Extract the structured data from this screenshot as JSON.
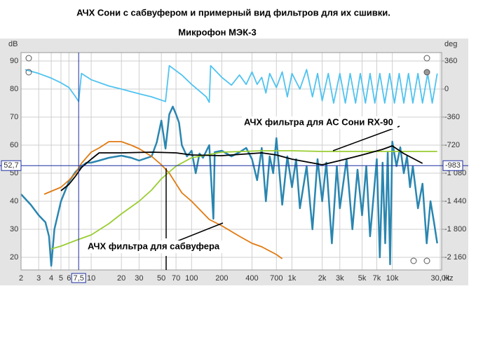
{
  "chart_data": {
    "type": "line",
    "title": "АЧХ Сони с сабвуфером и примерный вид фильтров для их сшивки.",
    "subtitle": "Микрофон МЭК-3",
    "xlabel": "Hz",
    "ylabel": "dB",
    "y2label": "deg",
    "log_x": true,
    "grid": true,
    "xlim": [
      2,
      31000
    ],
    "ylim": [
      15.5,
      93
    ],
    "y2lim": [
      -2322,
      468
    ],
    "xticks": [
      2,
      3,
      4,
      5,
      6,
      10,
      20,
      30,
      50,
      70,
      100,
      200,
      400,
      700,
      {
        "value": 1000,
        "label": "1k"
      },
      {
        "value": 2000,
        "label": "2k"
      },
      {
        "value": 3000,
        "label": "3k"
      },
      {
        "value": 5000,
        "label": "5k"
      },
      {
        "value": 7000,
        "label": "7k"
      },
      {
        "value": 10000,
        "label": "10k"
      },
      {
        "value": 30000,
        "label": "30,0k"
      }
    ],
    "yticks": [
      20,
      30,
      40,
      50,
      60,
      70,
      80,
      90
    ],
    "y2ticks": [
      360,
      0,
      -360,
      -720,
      {
        "value": -1080,
        "label": "-1 080"
      },
      {
        "value": -1440,
        "label": "-1 440"
      },
      {
        "value": -1800,
        "label": "-1 800"
      },
      {
        "value": -2160,
        "label": "-2 160"
      }
    ],
    "cursor": {
      "x": {
        "value": 7.5,
        "label": "7,5"
      },
      "y": {
        "value": 52.7,
        "label": "52,7"
      },
      "y2": -983
    },
    "annotations": [
      "АЧХ фильтра для АС Сони RX-90",
      "АЧХ фильтра для сабвуфера"
    ],
    "series": [
      {
        "color": "#4fc3f0",
        "axis": "y2",
        "x": [
          2.2,
          3,
          4,
          5,
          6,
          7,
          7.5,
          8,
          10,
          15,
          20,
          30,
          40,
          55,
          60,
          80,
          100,
          140,
          150,
          155,
          200,
          250,
          300,
          350,
          400,
          450,
          500,
          550,
          600,
          700,
          800,
          900,
          1000,
          1200,
          1400,
          1600,
          1800,
          2000,
          2300,
          2600,
          3000,
          3400,
          3800,
          4300,
          4800,
          5400,
          6000,
          6700,
          7500,
          8400,
          9400,
          10500,
          11700,
          13000,
          14500,
          16000,
          18000,
          20000,
          22500,
          25000,
          28000
        ],
        "values": [
          250,
          200,
          140,
          80,
          20,
          -100,
          -160,
          200,
          120,
          40,
          0,
          -60,
          -100,
          -160,
          300,
          180,
          60,
          -100,
          -170,
          300,
          150,
          50,
          180,
          60,
          220,
          60,
          150,
          -50,
          200,
          20,
          220,
          -100,
          200,
          0,
          250,
          -100,
          200,
          -150,
          200,
          -180,
          200,
          -180,
          200,
          -180,
          200,
          -180,
          200,
          -180,
          200,
          -180,
          200,
          -180,
          200,
          -180,
          200,
          -180,
          200,
          -180,
          200,
          -180,
          200
        ]
      },
      {
        "color": "#2a86b0",
        "x": [
          2,
          2.5,
          3,
          3.5,
          3.8,
          4,
          4.3,
          5,
          6,
          7,
          8,
          9,
          10,
          12,
          15,
          20,
          25,
          30,
          40,
          45,
          50,
          55,
          60,
          65,
          70,
          75,
          80,
          90,
          100,
          110,
          120,
          130,
          150,
          165,
          170,
          200,
          250,
          300,
          350,
          400,
          450,
          500,
          550,
          600,
          650,
          700,
          800,
          900,
          1000,
          1100,
          1200,
          1400,
          1600,
          1800,
          2000,
          2200,
          2500,
          2800,
          3000,
          3500,
          4000,
          4500,
          5000,
          5500,
          6000,
          7000,
          7500,
          8000,
          8500,
          9000,
          9500,
          10000,
          11000,
          12000,
          13000,
          14000,
          15000,
          16000,
          18000,
          20000,
          22000,
          24000,
          26000,
          28000
        ],
        "values": [
          42.5,
          38.75,
          35,
          32.5,
          27.5,
          17,
          30,
          40,
          47,
          50.5,
          52.5,
          53.75,
          53.75,
          54.5,
          55.5,
          56.25,
          55.5,
          54.5,
          56,
          61,
          68.75,
          58.75,
          71,
          73.75,
          71,
          68,
          60,
          56,
          58,
          50,
          57,
          55.5,
          60,
          33.75,
          57.5,
          58,
          56,
          57.5,
          59,
          55,
          47.5,
          59,
          40,
          56,
          50,
          62.5,
          38.75,
          56,
          45,
          55,
          37.5,
          52.5,
          30,
          55,
          40,
          53.75,
          25,
          52.5,
          37.5,
          55,
          30,
          51.25,
          35,
          52.5,
          27.5,
          55,
          20,
          53.75,
          25,
          57.5,
          17.5,
          61.25,
          52.5,
          59.25,
          50,
          56,
          45,
          52.5,
          37.5,
          46.25,
          25,
          40,
          32.5,
          25
        ]
      },
      {
        "color": "#e07a10",
        "x": [
          3.4,
          5,
          6,
          7,
          8,
          10,
          12,
          15,
          20,
          25,
          30,
          40,
          50,
          60,
          80,
          100,
          150,
          200,
          300,
          400,
          500,
          700,
          800
        ],
        "values": [
          42.5,
          45,
          47.5,
          50,
          53.5,
          57.5,
          59,
          61.25,
          61.25,
          60,
          58.75,
          56,
          53,
          50,
          43,
          40,
          33.5,
          31.25,
          27.5,
          25,
          23.75,
          21,
          19.5
        ]
      },
      {
        "color": "#9acd32",
        "x": [
          4,
          5,
          7,
          10,
          15,
          20,
          30,
          40,
          50,
          70,
          100,
          200,
          500,
          1000,
          2000,
          5000,
          10000,
          28000
        ],
        "values": [
          23,
          24,
          26,
          28,
          32,
          35.5,
          40,
          44,
          48,
          52.5,
          55.5,
          57.5,
          58,
          58,
          57.75,
          57.75,
          57.75,
          57.75
        ]
      },
      {
        "color": "#000000",
        "x": [
          5,
          6,
          7,
          8,
          10,
          12,
          20,
          40,
          70,
          100,
          200,
          500,
          700,
          1000,
          2000,
          3000,
          5000,
          8000,
          10000,
          13000,
          20000
        ],
        "values": [
          43.75,
          46,
          49,
          52,
          55,
          57.25,
          57.25,
          57.5,
          57.25,
          56.5,
          56.25,
          57.25,
          56.5,
          55,
          53,
          54.5,
          56.5,
          58.5,
          59.75,
          57,
          53.5
        ]
      }
    ]
  }
}
